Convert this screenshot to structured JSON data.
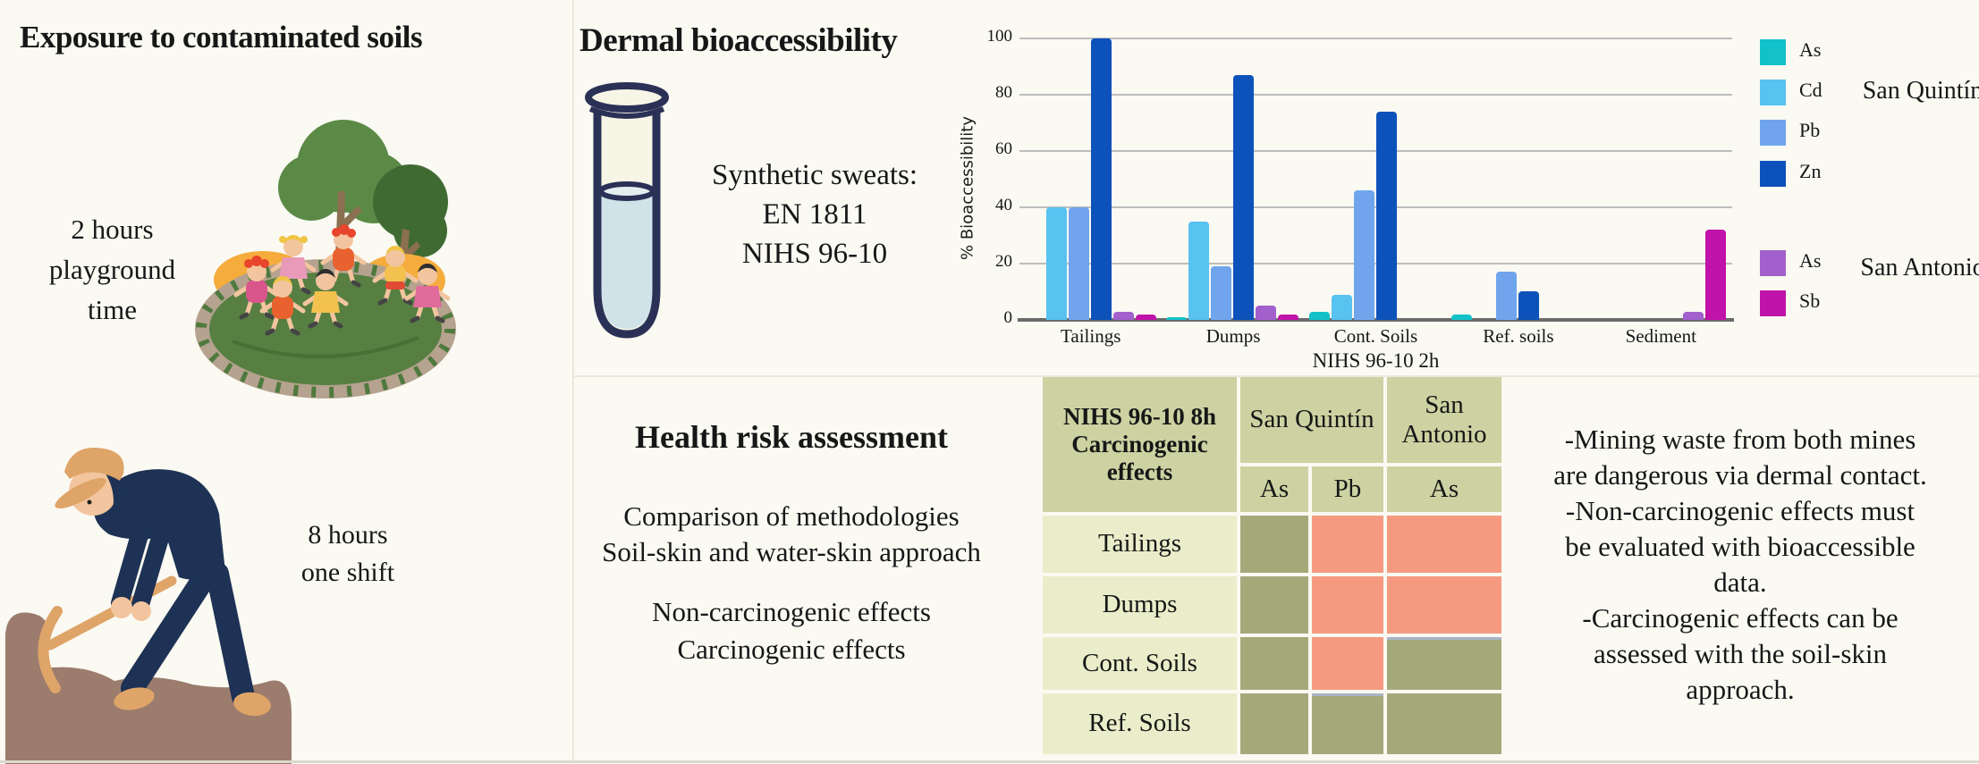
{
  "chart_data": {
    "type": "bar",
    "title": "",
    "xlabel": "NIHS 96-10 2h",
    "ylabel": "% Bioaccessibility",
    "ylim": [
      0,
      100
    ],
    "yticks": [
      0,
      20,
      40,
      60,
      80,
      100
    ],
    "grid": "horizontal",
    "legend_position": "right",
    "categories": [
      "Tailings",
      "Dumps",
      "Cont. Soils",
      "Ref. soils",
      "Sediment"
    ],
    "legend_groups": [
      {
        "label": "San Quintín",
        "series": [
          {
            "name": "As",
            "color": "#12c1c9",
            "values": [
              0,
              1,
              3,
              2,
              0
            ]
          },
          {
            "name": "Cd",
            "color": "#58c2f1",
            "values": [
              40,
              35,
              9,
              0,
              0
            ]
          },
          {
            "name": "Pb",
            "color": "#70a5ed",
            "values": [
              40,
              19,
              46,
              17,
              0
            ]
          },
          {
            "name": "Zn",
            "color": "#0d52ba",
            "values": [
              100,
              87,
              74,
              10,
              0
            ]
          }
        ]
      },
      {
        "label": "San Antonio",
        "series": [
          {
            "name": "As",
            "color": "#a160cc",
            "values": [
              3,
              5,
              0,
              0,
              3
            ]
          },
          {
            "name": "Sb",
            "color": "#c013a9",
            "values": [
              2,
              2,
              0,
              0,
              32
            ]
          }
        ]
      }
    ]
  },
  "figure": {
    "left": {
      "title": "Exposure to contaminated soils",
      "playground_caption_lines": [
        "2 hours",
        "playground",
        "time"
      ],
      "worker_caption_lines": [
        "8 hours",
        "one shift"
      ]
    },
    "dermal": {
      "title": "Dermal bioaccessibility",
      "lines": [
        "Synthetic sweats:",
        "EN 1811",
        "NIHS 96-10"
      ]
    },
    "health": {
      "title": "Health risk assessment",
      "lines1": [
        "Comparison of methodologies",
        "Soil-skin and water-skin approach"
      ],
      "lines2": [
        "Non-carcinogenic effects",
        "Carcinogenic effects"
      ]
    },
    "table": {
      "header": "NIHS 96-10 8h Carcinogenic effects",
      "col_groups": [
        {
          "label": "San Quintín",
          "cols": [
            "As",
            "Pb"
          ]
        },
        {
          "label": "San Antonio",
          "cols": [
            "As"
          ]
        }
      ],
      "rows": [
        {
          "label": "Tailings",
          "cells": [
            "no-risk",
            "risk",
            "risk"
          ]
        },
        {
          "label": "Dumps",
          "cells": [
            "no-risk",
            "risk",
            "risk"
          ]
        },
        {
          "label": "Cont. Soils",
          "cells": [
            "no-risk",
            "risk",
            "no-risk"
          ]
        },
        {
          "label": "Ref. Soils",
          "cells": [
            "no-risk",
            "no-risk",
            "no-risk"
          ]
        }
      ],
      "colors": {
        "risk": "#f59a80",
        "no-risk": "#a4a97a",
        "header_bg": "#cdd2a2",
        "label_bg": "#eaedca",
        "accent_line": "#a9b4c6"
      }
    },
    "conclusions": {
      "lines": [
        "-Mining waste from both mines",
        "are dangerous via dermal contact.",
        "-Non-carcinogenic effects must",
        "be evaluated with bioaccessible",
        "data.",
        "-Carcinogenic effects can be",
        "assessed with the soil-skin",
        "approach."
      ]
    }
  }
}
